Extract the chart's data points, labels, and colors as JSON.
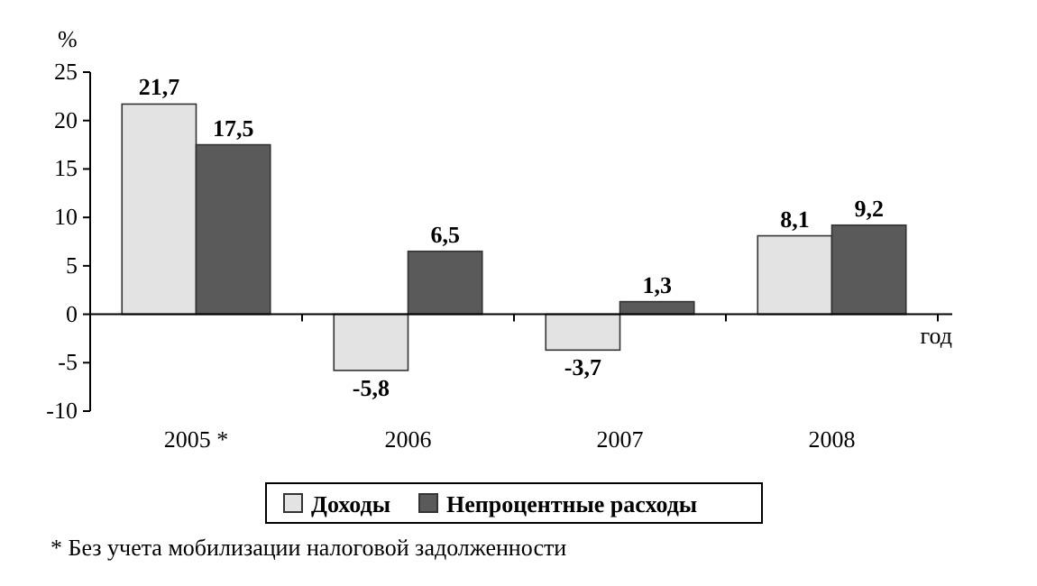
{
  "chart_data": {
    "type": "bar",
    "ylabel": "%",
    "xlabel": "год",
    "categories": [
      "2005 *",
      "2006",
      "2007",
      "2008"
    ],
    "series": [
      {
        "name": "Доходы",
        "color": "#e3e3e3",
        "values": [
          21.7,
          -5.8,
          -3.7,
          8.1
        ],
        "value_labels": [
          "21,7",
          "-5,8",
          "-3,7",
          "8,1"
        ]
      },
      {
        "name": "Непроцентные расходы",
        "color": "#5a5a5a",
        "values": [
          17.5,
          6.5,
          1.3,
          9.2
        ],
        "value_labels": [
          "17,5",
          "6,5",
          "1,3",
          "9,2"
        ]
      }
    ],
    "ylim": [
      -10,
      25
    ],
    "yticks": [
      -10,
      -5,
      0,
      5,
      10,
      15,
      20,
      25
    ],
    "legend": "bottom",
    "annotations": [
      "* Без учета мобилизации налоговой задолженности"
    ]
  }
}
